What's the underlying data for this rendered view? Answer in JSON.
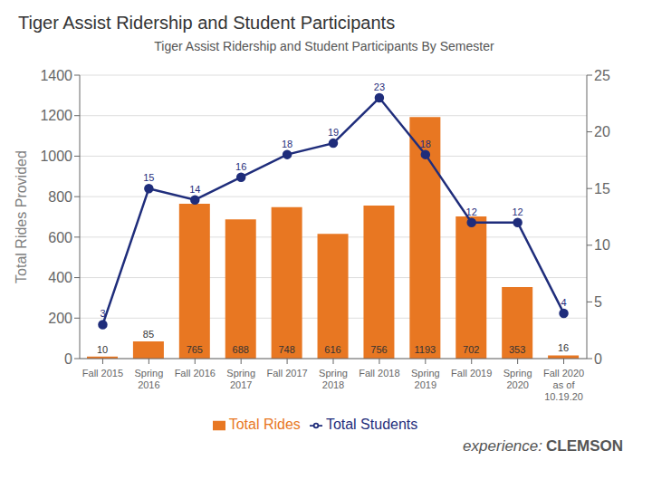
{
  "chart_data": {
    "type": "bar",
    "title": "Tiger Assist Ridership and Student Participants",
    "subtitle": "Tiger Assist Ridership and Student Participants By Semester",
    "categories": [
      "Fall 2015",
      "Spring\n2016",
      "Fall 2016",
      "Spring\n2017",
      "Fall 2017",
      "Spring\n2018",
      "Fall 2018",
      "Spring\n2019",
      "Fall 2019",
      "Spring\n2020",
      "Fall 2020\nas of\n10.19.20"
    ],
    "series": [
      {
        "name": "Total Rides",
        "type": "bar",
        "color": "#E87722",
        "values": [
          10,
          85,
          765,
          688,
          748,
          616,
          756,
          1193,
          702,
          353,
          16
        ]
      },
      {
        "name": "Total Students",
        "type": "line",
        "color": "#1F2D7B",
        "marker": "circle",
        "axis": "y2",
        "values": [
          3,
          15,
          14,
          16,
          18,
          19,
          23,
          18,
          12,
          12,
          4
        ]
      }
    ],
    "ylabel": "Total Rides Provided",
    "ylim": [
      0,
      1400
    ],
    "yticks": [
      0,
      200,
      400,
      600,
      800,
      1000,
      1200,
      1400
    ],
    "y2lim": [
      0,
      25
    ],
    "y2ticks": [
      0,
      5,
      10,
      15,
      20,
      25
    ],
    "grid": true,
    "legend": "bottom",
    "data_labels": true,
    "annotations": [
      "experience:",
      "CLEMSON"
    ]
  }
}
